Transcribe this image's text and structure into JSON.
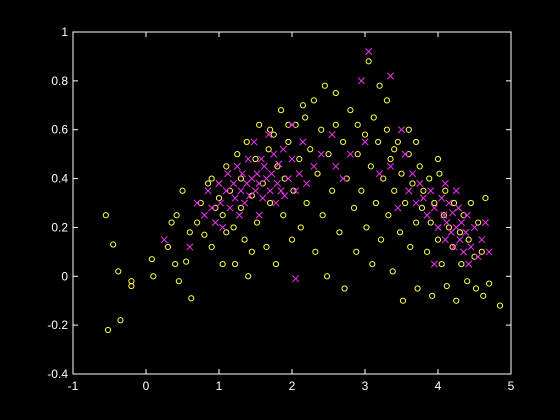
{
  "colors": {
    "background": "#000000",
    "axes": "#ffffff",
    "series_a": "#ffff44",
    "series_b": "#ee33ee"
  },
  "chart_data": {
    "type": "scatter",
    "title": "",
    "xlabel": "",
    "ylabel": "",
    "xlim": [
      -1,
      5
    ],
    "ylim": [
      -0.4,
      1
    ],
    "grid": false,
    "legend": "none",
    "xticks": [
      -1,
      0,
      1,
      2,
      3,
      4,
      5
    ],
    "xtick_labels": [
      "-1",
      "0",
      "1",
      "2",
      "3",
      "4",
      "5"
    ],
    "yticks": [
      -0.4,
      -0.2,
      0,
      0.2,
      0.4,
      0.6,
      0.8,
      1
    ],
    "ytick_labels": [
      "-0.4",
      "-0.2",
      "0",
      "0.2",
      "0.4",
      "0.6",
      "0.8",
      "1"
    ],
    "series": [
      {
        "marker": "circle",
        "color": "#ffff44",
        "points": [
          [
            -0.55,
            0.25
          ],
          [
            -0.45,
            0.13
          ],
          [
            -0.38,
            0.02
          ],
          [
            -0.35,
            -0.18
          ],
          [
            -0.52,
            -0.22
          ],
          [
            -0.2,
            -0.04
          ],
          [
            -0.2,
            -0.02
          ],
          [
            0.08,
            0.07
          ],
          [
            0.1,
            0.0
          ],
          [
            0.3,
            0.12
          ],
          [
            0.35,
            0.22
          ],
          [
            0.42,
            0.25
          ],
          [
            0.4,
            0.05
          ],
          [
            0.45,
            -0.02
          ],
          [
            0.55,
            0.06
          ],
          [
            0.6,
            0.18
          ],
          [
            0.62,
            -0.09
          ],
          [
            0.5,
            0.35
          ],
          [
            0.7,
            0.22
          ],
          [
            0.75,
            0.3
          ],
          [
            0.8,
            0.17
          ],
          [
            0.85,
            0.38
          ],
          [
            0.9,
            0.12
          ],
          [
            0.95,
            0.28
          ],
          [
            1.0,
            0.32
          ],
          [
            1.05,
            0.25
          ],
          [
            1.05,
            0.05
          ],
          [
            1.1,
            0.45
          ],
          [
            1.15,
            0.35
          ],
          [
            1.2,
            0.2
          ],
          [
            1.22,
            0.05
          ],
          [
            1.25,
            0.5
          ],
          [
            1.3,
            0.4
          ],
          [
            1.3,
            0.28
          ],
          [
            1.35,
            0.15
          ],
          [
            1.38,
            0.55
          ],
          [
            1.4,
            0.0
          ],
          [
            1.45,
            0.33
          ],
          [
            1.5,
            0.48
          ],
          [
            1.52,
            0.22
          ],
          [
            1.55,
            0.62
          ],
          [
            1.6,
            0.38
          ],
          [
            1.65,
            0.12
          ],
          [
            1.68,
            0.52
          ],
          [
            1.7,
            0.3
          ],
          [
            1.75,
            0.58
          ],
          [
            1.78,
            0.05
          ],
          [
            1.8,
            0.45
          ],
          [
            1.85,
            0.68
          ],
          [
            1.88,
            0.25
          ],
          [
            1.9,
            0.4
          ],
          [
            1.95,
            0.55
          ],
          [
            2.0,
            0.15
          ],
          [
            2.02,
            0.35
          ],
          [
            2.05,
            0.62
          ],
          [
            2.1,
            0.48
          ],
          [
            2.12,
            0.2
          ],
          [
            2.18,
            0.65
          ],
          [
            2.2,
            0.3
          ],
          [
            2.25,
            0.52
          ],
          [
            2.3,
            0.72
          ],
          [
            2.32,
            0.1
          ],
          [
            2.35,
            0.42
          ],
          [
            2.4,
            0.6
          ],
          [
            2.42,
            0.25
          ],
          [
            2.45,
            0.78
          ],
          [
            2.48,
            0.0
          ],
          [
            2.5,
            0.5
          ],
          [
            2.55,
            0.35
          ],
          [
            2.6,
            0.62
          ],
          [
            2.65,
            0.18
          ],
          [
            2.7,
            0.55
          ],
          [
            2.72,
            -0.05
          ],
          [
            2.75,
            0.4
          ],
          [
            2.8,
            0.68
          ],
          [
            2.85,
            0.28
          ],
          [
            2.88,
            0.1
          ],
          [
            2.9,
            0.5
          ],
          [
            2.95,
            0.35
          ],
          [
            3.0,
            0.58
          ],
          [
            3.02,
            0.2
          ],
          [
            3.05,
            0.88
          ],
          [
            3.08,
            0.45
          ],
          [
            3.1,
            0.05
          ],
          [
            3.12,
            0.65
          ],
          [
            3.15,
            0.3
          ],
          [
            3.18,
            0.55
          ],
          [
            3.2,
            0.78
          ],
          [
            3.22,
            0.15
          ],
          [
            3.25,
            0.4
          ],
          [
            3.3,
            0.6
          ],
          [
            3.32,
            0.25
          ],
          [
            3.35,
            0.48
          ],
          [
            3.38,
            0.02
          ],
          [
            3.4,
            0.35
          ],
          [
            3.45,
            0.55
          ],
          [
            3.48,
            0.18
          ],
          [
            3.5,
            0.42
          ],
          [
            3.52,
            -0.1
          ],
          [
            3.55,
            0.3
          ],
          [
            3.6,
            0.5
          ],
          [
            3.62,
            0.12
          ],
          [
            3.65,
            0.38
          ],
          [
            3.7,
            0.22
          ],
          [
            3.72,
            -0.05
          ],
          [
            3.75,
            0.45
          ],
          [
            3.78,
            0.28
          ],
          [
            3.8,
            0.35
          ],
          [
            3.85,
            0.1
          ],
          [
            3.88,
            0.4
          ],
          [
            3.9,
            0.22
          ],
          [
            3.92,
            -0.08
          ],
          [
            3.95,
            0.3
          ],
          [
            4.0,
            0.15
          ],
          [
            4.02,
            0.42
          ],
          [
            4.05,
            0.05
          ],
          [
            4.08,
            0.25
          ],
          [
            4.1,
            0.35
          ],
          [
            4.12,
            -0.04
          ],
          [
            4.15,
            0.2
          ],
          [
            4.2,
            0.12
          ],
          [
            4.22,
            0.3
          ],
          [
            4.25,
            -0.1
          ],
          [
            4.3,
            0.18
          ],
          [
            4.32,
            0.05
          ],
          [
            4.35,
            0.25
          ],
          [
            4.4,
            -0.02
          ],
          [
            4.42,
            0.15
          ],
          [
            4.45,
            0.3
          ],
          [
            4.5,
            0.08
          ],
          [
            4.52,
            -0.05
          ],
          [
            4.55,
            0.22
          ],
          [
            4.6,
            0.1
          ],
          [
            4.62,
            -0.08
          ],
          [
            4.65,
            0.32
          ],
          [
            4.7,
            -0.03
          ],
          [
            4.85,
            -0.12
          ],
          [
            3.3,
            0.72
          ],
          [
            2.9,
            0.62
          ],
          [
            3.4,
            0.52
          ],
          [
            2.15,
            0.7
          ],
          [
            1.95,
            0.62
          ],
          [
            1.7,
            0.6
          ],
          [
            2.6,
            0.75
          ],
          [
            3.6,
            0.6
          ],
          [
            3.7,
            0.55
          ],
          [
            4.0,
            0.48
          ],
          [
            1.45,
            0.1
          ],
          [
            1.1,
            0.18
          ],
          [
            0.9,
            0.4
          ]
        ]
      },
      {
        "marker": "x",
        "color": "#ee33ee",
        "points": [
          [
            0.25,
            0.15
          ],
          [
            0.6,
            0.12
          ],
          [
            0.7,
            0.3
          ],
          [
            0.8,
            0.25
          ],
          [
            0.85,
            0.35
          ],
          [
            0.9,
            0.28
          ],
          [
            0.95,
            0.22
          ],
          [
            1.0,
            0.38
          ],
          [
            1.02,
            0.3
          ],
          [
            1.05,
            0.2
          ],
          [
            1.1,
            0.35
          ],
          [
            1.12,
            0.42
          ],
          [
            1.15,
            0.28
          ],
          [
            1.2,
            0.38
          ],
          [
            1.22,
            0.32
          ],
          [
            1.25,
            0.45
          ],
          [
            1.28,
            0.25
          ],
          [
            1.3,
            0.35
          ],
          [
            1.32,
            0.42
          ],
          [
            1.35,
            0.3
          ],
          [
            1.38,
            0.38
          ],
          [
            1.4,
            0.48
          ],
          [
            1.42,
            0.33
          ],
          [
            1.45,
            0.4
          ],
          [
            1.48,
            0.55
          ],
          [
            1.5,
            0.35
          ],
          [
            1.52,
            0.42
          ],
          [
            1.55,
            0.38
          ],
          [
            1.58,
            0.48
          ],
          [
            1.6,
            0.32
          ],
          [
            1.62,
            0.45
          ],
          [
            1.65,
            0.4
          ],
          [
            1.68,
            0.58
          ],
          [
            1.7,
            0.35
          ],
          [
            1.72,
            0.42
          ],
          [
            1.75,
            0.5
          ],
          [
            1.78,
            0.3
          ],
          [
            1.8,
            0.38
          ],
          [
            1.82,
            0.46
          ],
          [
            1.85,
            0.35
          ],
          [
            1.88,
            0.52
          ],
          [
            1.9,
            0.33
          ],
          [
            1.95,
            0.4
          ],
          [
            2.0,
            0.48
          ],
          [
            2.05,
            0.35
          ],
          [
            2.1,
            0.42
          ],
          [
            2.15,
            0.55
          ],
          [
            2.2,
            0.38
          ],
          [
            2.3,
            0.45
          ],
          [
            2.4,
            0.5
          ],
          [
            2.55,
            0.58
          ],
          [
            2.6,
            0.45
          ],
          [
            2.8,
            0.5
          ],
          [
            2.95,
            0.8
          ],
          [
            3.05,
            0.92
          ],
          [
            3.35,
            0.82
          ],
          [
            3.35,
            0.45
          ],
          [
            3.2,
            0.42
          ],
          [
            3.5,
            0.6
          ],
          [
            3.55,
            0.5
          ],
          [
            3.6,
            0.35
          ],
          [
            3.65,
            0.42
          ],
          [
            3.7,
            0.3
          ],
          [
            3.75,
            0.38
          ],
          [
            3.8,
            0.32
          ],
          [
            3.85,
            0.25
          ],
          [
            3.9,
            0.35
          ],
          [
            3.95,
            0.28
          ],
          [
            4.0,
            0.2
          ],
          [
            4.05,
            0.32
          ],
          [
            4.08,
            0.25
          ],
          [
            4.1,
            0.15
          ],
          [
            4.12,
            0.22
          ],
          [
            4.15,
            0.3
          ],
          [
            4.18,
            0.18
          ],
          [
            4.2,
            0.26
          ],
          [
            4.22,
            0.12
          ],
          [
            4.25,
            0.2
          ],
          [
            4.28,
            0.28
          ],
          [
            4.3,
            0.15
          ],
          [
            4.32,
            0.22
          ],
          [
            4.35,
            0.1
          ],
          [
            4.38,
            0.18
          ],
          [
            4.4,
            0.25
          ],
          [
            4.42,
            0.05
          ],
          [
            4.45,
            0.12
          ],
          [
            4.5,
            0.2
          ],
          [
            4.55,
            0.08
          ],
          [
            4.6,
            0.15
          ],
          [
            4.65,
            0.22
          ],
          [
            4.7,
            0.1
          ],
          [
            4.1,
            0.38
          ],
          [
            3.45,
            0.28
          ],
          [
            3.95,
            0.05
          ],
          [
            2.05,
            -0.01
          ],
          [
            2.0,
            0.62
          ],
          [
            1.55,
            0.25
          ],
          [
            3.0,
            0.55
          ],
          [
            2.7,
            0.4
          ],
          [
            4.25,
            0.35
          ]
        ]
      }
    ]
  }
}
